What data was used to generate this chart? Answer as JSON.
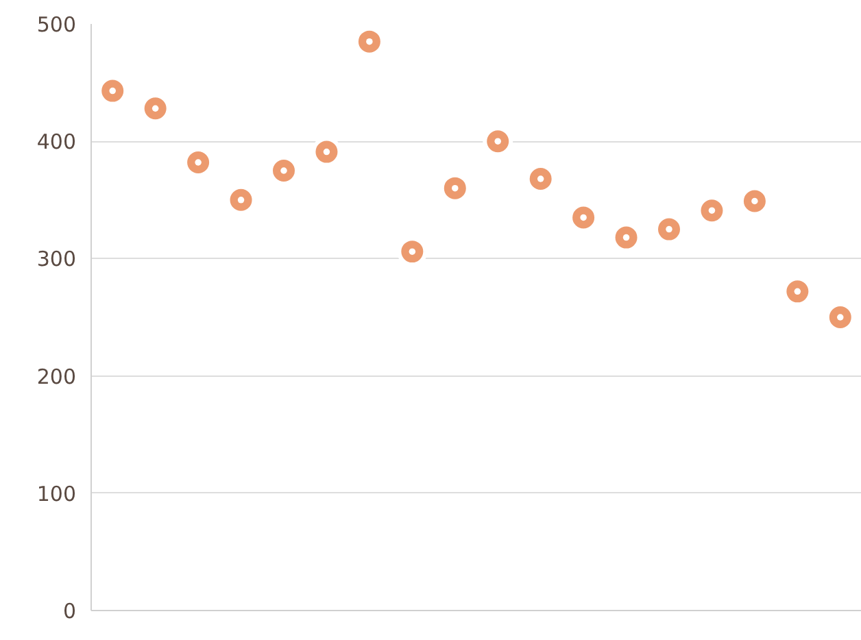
{
  "chart_data": {
    "type": "scatter",
    "categories": [
      null,
      null,
      null,
      null,
      null,
      null,
      null,
      null,
      null,
      null,
      null,
      null,
      null,
      null,
      null,
      null,
      null,
      null
    ],
    "series": [
      {
        "color": "#ec9a6e",
        "values": [
          443,
          428,
          382,
          350,
          375,
          391,
          485,
          306,
          360,
          400,
          368,
          335,
          318,
          325,
          341,
          349,
          272,
          250
        ]
      }
    ],
    "ylim": [
      0,
      500
    ],
    "yticks": [
      0,
      100,
      200,
      300,
      400,
      500
    ],
    "grid": "y",
    "marker": "circle",
    "tick_labels": "y"
  }
}
